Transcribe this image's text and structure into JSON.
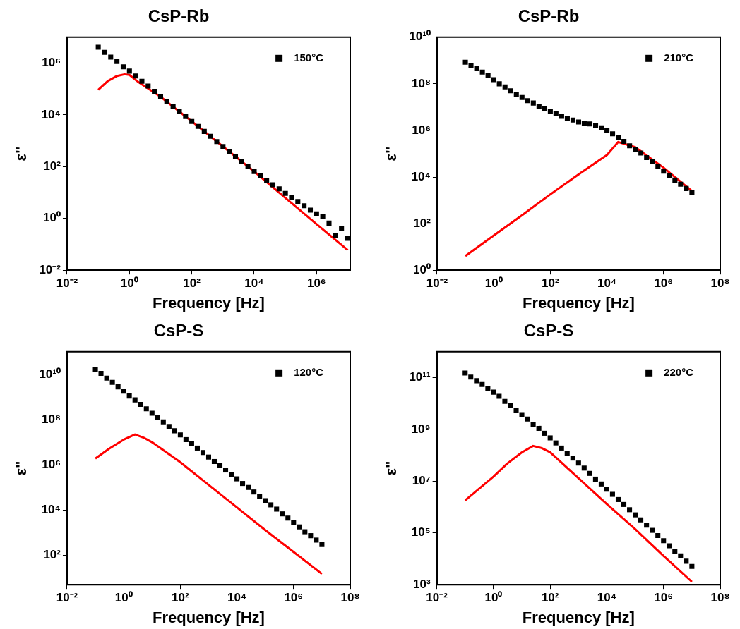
{
  "chart_data": [
    {
      "type": "scatter",
      "title": "CsP-Rb",
      "xlabel": "Frequency [Hz]",
      "ylabel": "ε\"",
      "log": "xy",
      "legend": "top right",
      "xlim": [
        0.01,
        12000000
      ],
      "ylim": [
        0.01,
        10000000
      ],
      "xticks": [
        {
          "value": 0.01,
          "label": "10⁻²"
        },
        {
          "value": 1,
          "label": "10⁰"
        },
        {
          "value": 100,
          "label": "10²"
        },
        {
          "value": 10000,
          "label": "10⁴"
        },
        {
          "value": 1000000,
          "label": "10⁶"
        }
      ],
      "yticks": [
        {
          "value": 0.01,
          "label": "10⁻²"
        },
        {
          "value": 1,
          "label": "10⁰"
        },
        {
          "value": 100,
          "label": "10²"
        },
        {
          "value": 10000,
          "label": "10⁴"
        },
        {
          "value": 1000000,
          "label": "10⁶"
        }
      ],
      "x": [
        0.1,
        0.158,
        0.251,
        0.398,
        0.631,
        1,
        1.58,
        2.51,
        3.98,
        6.31,
        10,
        15.8,
        25.1,
        39.8,
        63.1,
        100,
        158,
        251,
        398,
        631,
        1000,
        1580,
        2510,
        3980,
        6310,
        10000,
        15800,
        25100,
        39800,
        63100,
        100000,
        158000,
        251000,
        398000,
        631000,
        1000000,
        1580000,
        2510000,
        3980000,
        6310000,
        10000000
      ],
      "series": [
        {
          "name": "150°C",
          "marker": "square",
          "color": "#000000",
          "values": [
            4100000,
            2600000,
            1700000,
            1150000,
            720000,
            490000,
            320000,
            200000,
            130000,
            81000,
            52000,
            34000,
            21000,
            14000,
            8700,
            5600,
            3600,
            2300,
            1500,
            930,
            600,
            390,
            250,
            160,
            100,
            65,
            44,
            30,
            20,
            14,
            9.3,
            6.5,
            4.5,
            3.1,
            2.1,
            1.5,
            1.2,
            0.66,
            0.22,
            0.42,
            0.17
          ]
        },
        {
          "type": "line",
          "marker": "none",
          "color": "#ff0000",
          "x": [
            0.1,
            0.2,
            0.4,
            0.7,
            1,
            2,
            10,
            100,
            1000,
            10000,
            100000,
            1000000,
            10000000
          ],
          "values": [
            93000,
            200000,
            320000,
            370000,
            350000,
            180000,
            50000,
            5600,
            600,
            65,
            6.2,
            0.6,
            0.06
          ]
        }
      ]
    },
    {
      "type": "scatter",
      "title": "CsP-Rb",
      "xlabel": "Frequency [Hz]",
      "ylabel": "ε\"",
      "log": "xy",
      "legend": "top right",
      "xlim": [
        0.01,
        100000000
      ],
      "ylim": [
        1,
        10000000000
      ],
      "xticks": [
        {
          "value": 0.01,
          "label": "10⁻²"
        },
        {
          "value": 1,
          "label": "10⁰"
        },
        {
          "value": 100,
          "label": "10²"
        },
        {
          "value": 10000,
          "label": "10⁴"
        },
        {
          "value": 1000000,
          "label": "10⁶"
        },
        {
          "value": 100000000,
          "label": "10⁸"
        }
      ],
      "yticks": [
        {
          "value": 1,
          "label": "10⁰"
        },
        {
          "value": 100,
          "label": "10²"
        },
        {
          "value": 10000,
          "label": "10⁴"
        },
        {
          "value": 1000000,
          "label": "10⁶"
        },
        {
          "value": 100000000,
          "label": "10⁸"
        },
        {
          "value": 10000000000,
          "label": "10¹⁰"
        }
      ],
      "x": [
        0.1,
        0.158,
        0.251,
        0.398,
        0.631,
        1,
        1.58,
        2.51,
        3.98,
        6.31,
        10,
        15.8,
        25.1,
        39.8,
        63.1,
        100,
        158,
        251,
        398,
        631,
        1000,
        1580,
        2510,
        3980,
        6310,
        10000,
        15800,
        25100,
        39800,
        63100,
        100000,
        158000,
        251000,
        398000,
        631000,
        1000000,
        1580000,
        2510000,
        3980000,
        6310000,
        10000000
      ],
      "series": [
        {
          "name": "210°C",
          "marker": "square",
          "color": "#000000",
          "values": [
            850000000,
            630000000,
            450000000,
            320000000,
            220000000,
            150000000,
            100000000,
            74000000,
            50000000,
            35000000,
            26000000,
            19000000,
            15000000,
            11000000,
            8500000,
            6600000,
            5100000,
            4000000,
            3200000,
            2800000,
            2300000,
            2000000,
            1900000,
            1600000,
            1300000,
            980000,
            720000,
            490000,
            340000,
            220000,
            155000,
            107000,
            68000,
            45000,
            28000,
            18000,
            12000,
            7400,
            4900,
            3200,
            2100
          ]
        },
        {
          "type": "line",
          "marker": "none",
          "color": "#ff0000",
          "x": [
            0.1,
            1,
            10,
            100,
            1000,
            10000,
            25000,
            100000,
            1000000,
            10000000
          ],
          "values": [
            4.1,
            31,
            230,
            1800,
            13000,
            89000,
            320000,
            190000,
            25000,
            2500
          ]
        }
      ]
    },
    {
      "type": "scatter",
      "title": "CsP-S",
      "xlabel": "Frequency [Hz]",
      "ylabel": "ε\"",
      "log": "xy",
      "legend": "top right",
      "xlim": [
        0.01,
        100000000
      ],
      "ylim": [
        5,
        100000000000
      ],
      "xticks": [
        {
          "value": 0.01,
          "label": "10⁻²"
        },
        {
          "value": 1,
          "label": "10⁰"
        },
        {
          "value": 100,
          "label": "10²"
        },
        {
          "value": 10000,
          "label": "10⁴"
        },
        {
          "value": 1000000,
          "label": "10⁶"
        },
        {
          "value": 100000000,
          "label": "10⁸"
        }
      ],
      "yticks": [
        {
          "value": 100,
          "label": "10²"
        },
        {
          "value": 10000,
          "label": "10⁴"
        },
        {
          "value": 1000000,
          "label": "10⁶"
        },
        {
          "value": 100000000,
          "label": "10⁸"
        },
        {
          "value": 10000000000,
          "label": "10¹⁰"
        }
      ],
      "x": [
        0.1,
        0.158,
        0.251,
        0.398,
        0.631,
        1,
        1.58,
        2.51,
        3.98,
        6.31,
        10,
        15.8,
        25.1,
        39.8,
        63.1,
        100,
        158,
        251,
        398,
        631,
        1000,
        1580,
        2510,
        3980,
        6310,
        10000,
        15800,
        25100,
        39800,
        63100,
        100000,
        158000,
        251000,
        398000,
        631000,
        1000000,
        1580000,
        2510000,
        3980000,
        6310000,
        10000000
      ],
      "series": [
        {
          "name": "120°C",
          "marker": "square",
          "color": "#000000",
          "values": [
            17000000000,
            11000000000,
            6800000000,
            4400000000,
            2800000000,
            1800000000,
            1100000000,
            740000000,
            470000000,
            300000000,
            190000000,
            120000000,
            79000000,
            50000000,
            32000000,
            21000000,
            13000000,
            8500000,
            5500000,
            3500000,
            2200000,
            1400000,
            910000,
            590000,
            380000,
            240000,
            150000,
            100000,
            63000,
            41000,
            26000,
            17000,
            11000,
            6800,
            4400,
            2800,
            1800,
            1100,
            740,
            470,
            300
          ]
        },
        {
          "type": "line",
          "marker": "none",
          "color": "#ff0000",
          "x": [
            0.1,
            0.3,
            1,
            2.5,
            5,
            10,
            100,
            1000,
            10000,
            100000,
            1000000,
            10000000
          ],
          "values": [
            1900000,
            5100000,
            13000000,
            22000000,
            16000000,
            10000000,
            1300000,
            130000,
            13000,
            1300,
            140,
            15
          ]
        }
      ]
    },
    {
      "type": "scatter",
      "title": "CsP-S",
      "xlabel": "Frequency [Hz]",
      "ylabel": "ε\"",
      "log": "xy",
      "legend": "top right",
      "xlim": [
        0.01,
        100000000
      ],
      "ylim": [
        1000,
        1000000000000
      ],
      "xticks": [
        {
          "value": 0.01,
          "label": "10⁻²"
        },
        {
          "value": 1,
          "label": "10⁰"
        },
        {
          "value": 100,
          "label": "10²"
        },
        {
          "value": 10000,
          "label": "10⁴"
        },
        {
          "value": 1000000,
          "label": "10⁶"
        },
        {
          "value": 100000000,
          "label": "10⁸"
        }
      ],
      "yticks": [
        {
          "value": 1000,
          "label": "10³"
        },
        {
          "value": 100000,
          "label": "10⁵"
        },
        {
          "value": 10000000,
          "label": "10⁷"
        },
        {
          "value": 1000000000,
          "label": "10⁹"
        },
        {
          "value": 100000000000,
          "label": "10¹¹"
        }
      ],
      "x": [
        0.1,
        0.158,
        0.251,
        0.398,
        0.631,
        1,
        1.58,
        2.51,
        3.98,
        6.31,
        10,
        15.8,
        25.1,
        39.8,
        63.1,
        100,
        158,
        251,
        398,
        631,
        1000,
        1580,
        2510,
        3980,
        6310,
        10000,
        15800,
        25100,
        39800,
        63100,
        100000,
        158000,
        251000,
        398000,
        631000,
        1000000,
        1580000,
        2510000,
        3980000,
        6310000,
        10000000
      ],
      "series": [
        {
          "name": "220°C",
          "marker": "square",
          "color": "#000000",
          "values": [
            150000000000,
            105000000000,
            76000000000,
            54000000000,
            39000000000,
            27500000000,
            19000000000,
            12000000000,
            8300000000,
            5500000000,
            3700000000,
            2500000000,
            1600000000,
            1100000000,
            710000000,
            470000000,
            300000000,
            190000000,
            120000000,
            78000000,
            50000000,
            32000000,
            20000000,
            12000000,
            7800000,
            4900000,
            3100000,
            1950000,
            1260000,
            790000,
            500000,
            320000,
            200000,
            126000,
            79000,
            50000,
            32000,
            20000,
            13000,
            8100,
            5100
          ]
        },
        {
          "type": "line",
          "marker": "none",
          "color": "#ff0000",
          "x": [
            0.1,
            1,
            3,
            10,
            25,
            50,
            100,
            1000,
            10000,
            100000,
            1000000,
            10000000
          ],
          "values": [
            1800000,
            15000000,
            47000000,
            130000000,
            230000000,
            190000000,
            130000000,
            13000000,
            1300000,
            140000,
            13000,
            1300
          ]
        }
      ]
    }
  ]
}
